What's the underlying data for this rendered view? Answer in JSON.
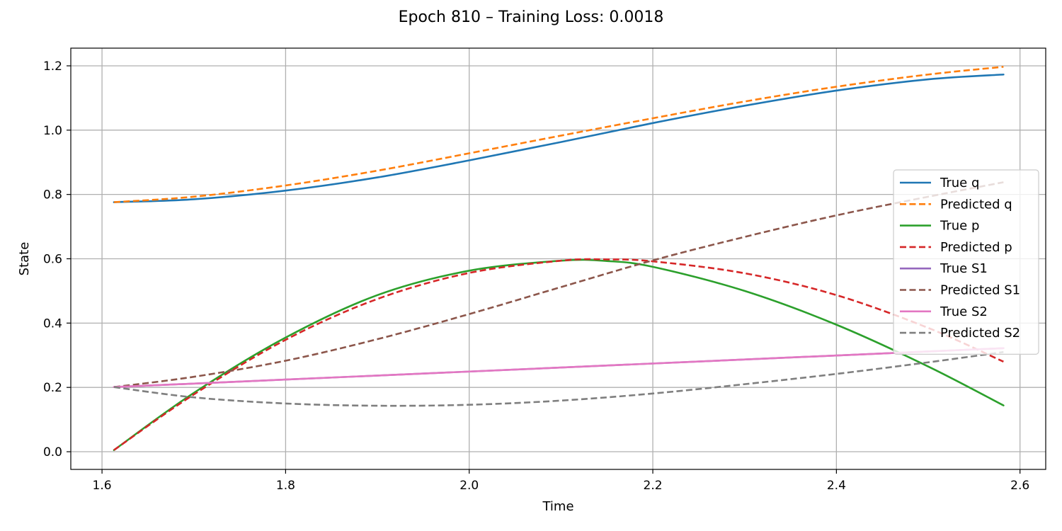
{
  "chart_data": {
    "type": "line",
    "title": "Epoch 810 – Training Loss: 0.0018",
    "xlabel": "Time",
    "ylabel": "State",
    "xlim": [
      1.566,
      2.628
    ],
    "ylim": [
      -0.055,
      1.255
    ],
    "xticks": [
      1.6,
      1.8,
      2.0,
      2.2,
      2.4,
      2.6
    ],
    "xtick_labels": [
      "1.6",
      "1.8",
      "2.0",
      "2.2",
      "2.4",
      "2.6"
    ],
    "yticks": [
      0.0,
      0.2,
      0.4,
      0.6,
      0.8,
      1.0,
      1.2
    ],
    "ytick_labels": [
      "0.0",
      "0.2",
      "0.4",
      "0.6",
      "0.8",
      "1.0",
      "1.2"
    ],
    "grid": true,
    "legend_position": "right",
    "series": [
      {
        "name": "True q",
        "color": "#1f77b4",
        "style": "solid",
        "x": [
          1.613,
          1.7,
          1.8,
          1.9,
          2.0,
          2.1,
          2.2,
          2.3,
          2.4,
          2.5,
          2.582
        ],
        "y": [
          0.776,
          0.785,
          0.812,
          0.853,
          0.906,
          0.963,
          1.022,
          1.076,
          1.123,
          1.158,
          1.173
        ]
      },
      {
        "name": "Predicted q",
        "color": "#ff7f0e",
        "style": "dashed",
        "x": [
          1.613,
          1.7,
          1.8,
          1.9,
          2.0,
          2.1,
          2.2,
          2.3,
          2.4,
          2.5,
          2.582
        ],
        "y": [
          0.776,
          0.793,
          0.828,
          0.874,
          0.928,
          0.983,
          1.037,
          1.089,
          1.135,
          1.173,
          1.197
        ]
      },
      {
        "name": "True p",
        "color": "#2ca02c",
        "style": "solid",
        "x": [
          1.613,
          1.7,
          1.8,
          1.9,
          2.0,
          2.1,
          2.15,
          2.2,
          2.3,
          2.4,
          2.5,
          2.582
        ],
        "y": [
          0.005,
          0.183,
          0.355,
          0.487,
          0.563,
          0.594,
          0.593,
          0.575,
          0.5,
          0.395,
          0.265,
          0.144
        ]
      },
      {
        "name": "Predicted p",
        "color": "#d62728",
        "style": "dashed",
        "x": [
          1.613,
          1.7,
          1.8,
          1.9,
          2.0,
          2.1,
          2.15,
          2.2,
          2.3,
          2.4,
          2.5,
          2.582
        ],
        "y": [
          0.005,
          0.178,
          0.348,
          0.475,
          0.556,
          0.594,
          0.598,
          0.592,
          0.555,
          0.487,
          0.385,
          0.28
        ]
      },
      {
        "name": "True S1",
        "color": "#9467bd",
        "style": "solid",
        "x": [
          1.613,
          2.582
        ],
        "y": [
          0.201,
          0.322
        ]
      },
      {
        "name": "Predicted S1",
        "color": "#8c564b",
        "style": "dashed",
        "x": [
          1.613,
          1.7,
          1.8,
          1.9,
          2.0,
          2.1,
          2.2,
          2.3,
          2.4,
          2.5,
          2.582
        ],
        "y": [
          0.201,
          0.233,
          0.283,
          0.35,
          0.428,
          0.512,
          0.595,
          0.668,
          0.735,
          0.793,
          0.838
        ]
      },
      {
        "name": "True S2",
        "color": "#e377c2",
        "style": "solid",
        "x": [
          1.613,
          2.582
        ],
        "y": [
          0.201,
          0.322
        ]
      },
      {
        "name": "Predicted S2",
        "color": "#7f7f7f",
        "style": "dashed",
        "x": [
          1.613,
          1.7,
          1.8,
          1.9,
          2.0,
          2.1,
          2.2,
          2.3,
          2.4,
          2.5,
          2.582
        ],
        "y": [
          0.201,
          0.169,
          0.15,
          0.143,
          0.146,
          0.159,
          0.181,
          0.21,
          0.242,
          0.278,
          0.31
        ]
      }
    ]
  }
}
